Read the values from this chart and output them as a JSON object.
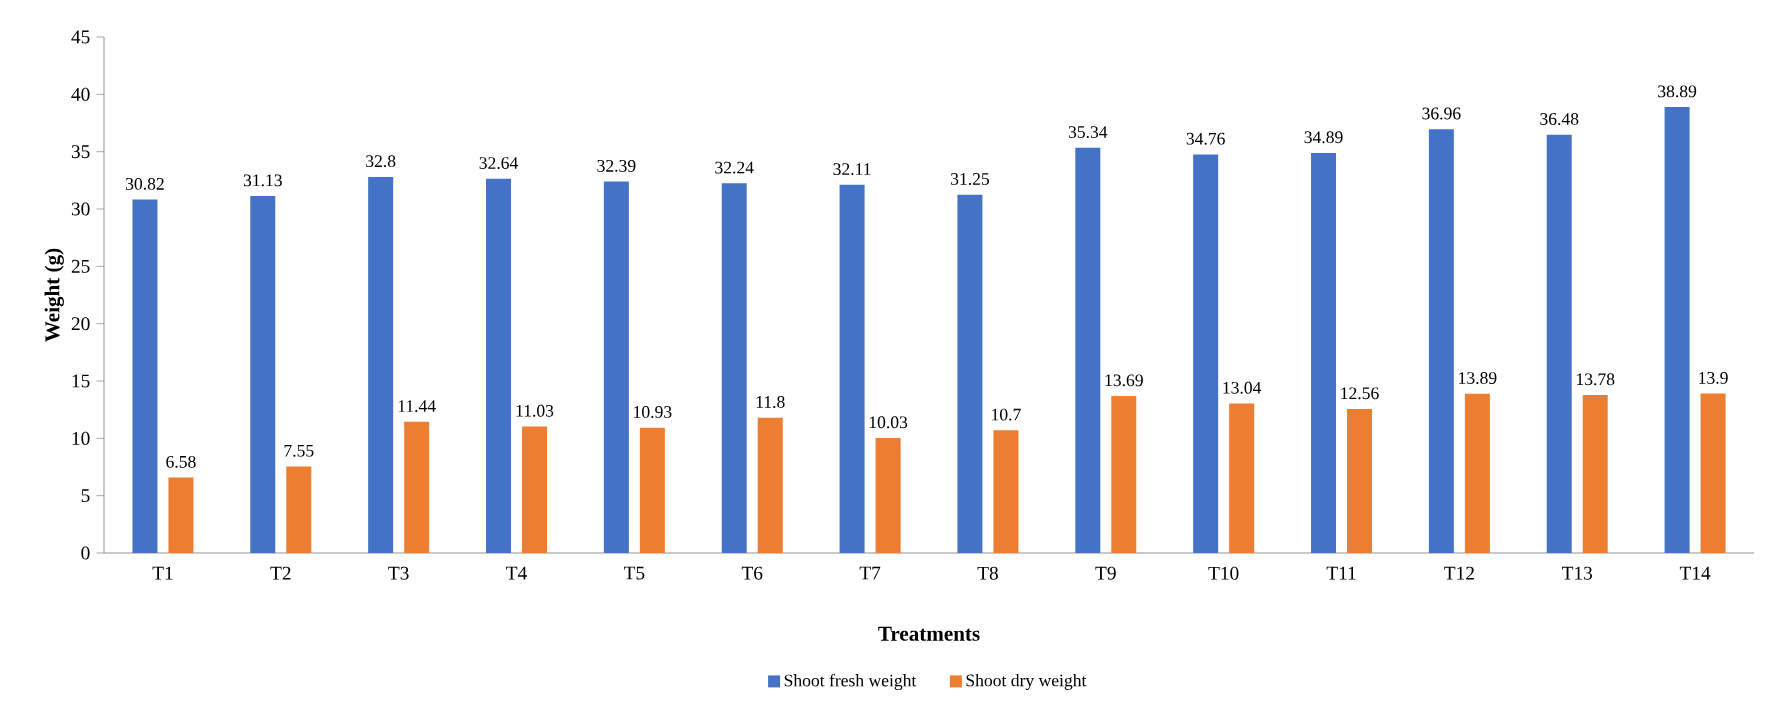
{
  "chart_data": {
    "type": "bar",
    "xlabel": "Treatments",
    "ylabel": "Weight (g)",
    "categories": [
      "T1",
      "T2",
      "T3",
      "T4",
      "T5",
      "T6",
      "T7",
      "T8",
      "T9",
      "T10",
      "T11",
      "T12",
      "T13",
      "T14"
    ],
    "series": [
      {
        "name": "Shoot fresh weight",
        "color": "#4472c4",
        "values": [
          30.82,
          31.13,
          32.8,
          32.64,
          32.39,
          32.24,
          32.11,
          31.25,
          35.34,
          34.76,
          34.89,
          36.96,
          36.48,
          38.89
        ]
      },
      {
        "name": "Shoot dry weight",
        "color": "#ed7d31",
        "values": [
          6.58,
          7.55,
          11.44,
          11.03,
          10.93,
          11.8,
          10.03,
          10.7,
          13.69,
          13.04,
          12.56,
          13.89,
          13.78,
          13.9
        ]
      }
    ],
    "ylim": [
      0,
      45
    ],
    "yticks": [
      0,
      5,
      10,
      15,
      20,
      25,
      30,
      35,
      40,
      45
    ],
    "data_labels": true,
    "legend": "bottom",
    "grid": false
  }
}
